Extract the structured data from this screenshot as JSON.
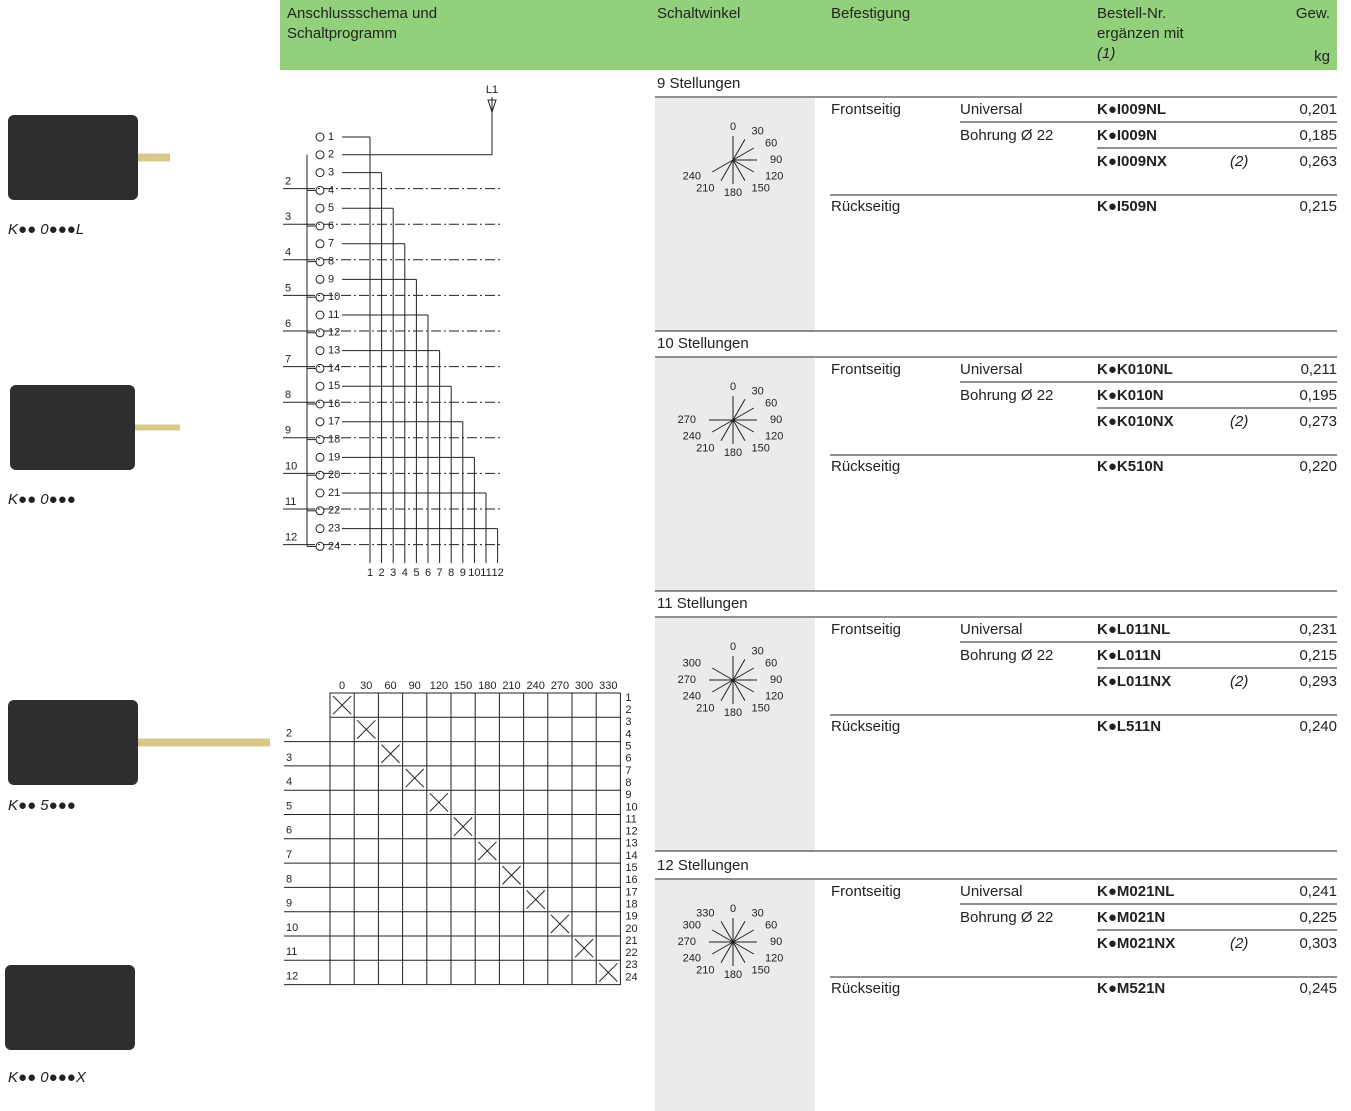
{
  "header": {
    "schema": [
      "Anschlussschema und",
      "Schaltprogramm"
    ],
    "angle": "Schaltwinkel",
    "mounting": "Befestigung",
    "order": [
      "Bestell-Nr.",
      "ergänzen mit",
      "(1)"
    ],
    "weight": [
      "Gew.",
      "kg"
    ]
  },
  "products": [
    {
      "caption": "K●● 0●●●L"
    },
    {
      "caption": "K●● 0●●●"
    },
    {
      "caption": "K●● 5●●●"
    },
    {
      "caption": "K●● 0●●●X"
    }
  ],
  "wiring": {
    "supply": "L1",
    "terminals": [
      1,
      2,
      3,
      4,
      5,
      6,
      7,
      8,
      9,
      10,
      11,
      12,
      13,
      14,
      15,
      16,
      17,
      18,
      19,
      20,
      21,
      22,
      23,
      24
    ],
    "groups": [
      2,
      3,
      4,
      5,
      6,
      7,
      8,
      9,
      10,
      11,
      12
    ],
    "outputs": [
      1,
      2,
      3,
      4,
      5,
      6,
      7,
      8,
      9,
      10,
      11,
      12
    ]
  },
  "matrix": {
    "angles": [
      0,
      30,
      60,
      90,
      120,
      150,
      180,
      210,
      240,
      270,
      300,
      330
    ],
    "rows": [
      2,
      3,
      4,
      5,
      6,
      7,
      8,
      9,
      10,
      11,
      12
    ],
    "terminals": [
      1,
      2,
      3,
      4,
      5,
      6,
      7,
      8,
      9,
      10,
      11,
      12,
      13,
      14,
      15,
      16,
      17,
      18,
      19,
      20,
      21,
      22,
      23,
      24
    ]
  },
  "sections": [
    {
      "title": "9 Stellungen",
      "dial": [
        0,
        30,
        60,
        90,
        120,
        150,
        180,
        210,
        240
      ],
      "rows": [
        {
          "mounting": "Frontseitig",
          "type": "Universal",
          "order": "K●I009NL",
          "weight": "0,201"
        },
        {
          "type": "Bohrung Ø 22",
          "order": "K●I009N",
          "weight": "0,185"
        },
        {
          "order": "K●I009NX",
          "note": "(2)",
          "weight": "0,263"
        },
        {
          "mounting": "Rückseitig",
          "order": "K●I509N",
          "weight": "0,215"
        }
      ]
    },
    {
      "title": "10 Stellungen",
      "dial": [
        0,
        30,
        60,
        90,
        120,
        150,
        180,
        210,
        240,
        270
      ],
      "rows": [
        {
          "mounting": "Frontseitig",
          "type": "Universal",
          "order": "K●K010NL",
          "weight": "0,211"
        },
        {
          "type": "Bohrung Ø 22",
          "order": "K●K010N",
          "weight": "0,195"
        },
        {
          "order": "K●K010NX",
          "note": "(2)",
          "weight": "0,273"
        },
        {
          "mounting": "Rückseitig",
          "order": "K●K510N",
          "weight": "0,220"
        }
      ]
    },
    {
      "title": "11 Stellungen",
      "dial": [
        0,
        30,
        60,
        90,
        120,
        150,
        180,
        210,
        240,
        270,
        300
      ],
      "rows": [
        {
          "mounting": "Frontseitig",
          "type": "Universal",
          "order": "K●L011NL",
          "weight": "0,231"
        },
        {
          "type": "Bohrung Ø 22",
          "order": "K●L011N",
          "weight": "0,215"
        },
        {
          "order": "K●L011NX",
          "note": "(2)",
          "weight": "0,293"
        },
        {
          "mounting": "Rückseitig",
          "order": "K●L511N",
          "weight": "0,240"
        }
      ]
    },
    {
      "title": "12 Stellungen",
      "dial": [
        0,
        30,
        60,
        90,
        120,
        150,
        180,
        210,
        240,
        270,
        300,
        330
      ],
      "rows": [
        {
          "mounting": "Frontseitig",
          "type": "Universal",
          "order": "K●M021NL",
          "weight": "0,241"
        },
        {
          "type": "Bohrung Ø 22",
          "order": "K●M021N",
          "weight": "0,225"
        },
        {
          "order": "K●M021NX",
          "note": "(2)",
          "weight": "0,303"
        },
        {
          "mounting": "Rückseitig",
          "order": "K●M521N",
          "weight": "0,245"
        }
      ]
    }
  ]
}
